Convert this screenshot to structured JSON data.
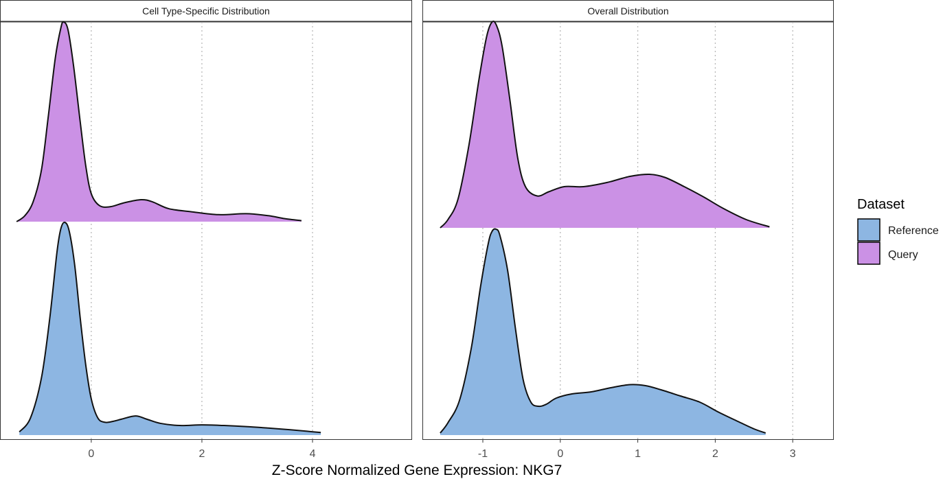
{
  "chart_data": {
    "type": "area",
    "subtype": "ridgeline-density",
    "xlabel": "Z-Score Normalized Gene Expression: NKG7",
    "legend": {
      "title": "Dataset",
      "position": "right",
      "items": [
        {
          "label": "Reference",
          "color": "#8DB6E2"
        },
        {
          "label": "Query",
          "color": "#CB91E5"
        }
      ]
    },
    "grid": {
      "vertical": "dotted",
      "horizontal": false
    },
    "panels": [
      {
        "strip": "Cell Type-Specific Distribution",
        "xlim": [
          -1.65,
          5.8
        ],
        "ticks": [
          0,
          2,
          4
        ],
        "tick_labels": [
          "0",
          "2",
          "4"
        ],
        "series": [
          {
            "name": "Reference",
            "color": "#8DB6E2",
            "points": [
              [
                -1.3,
                0.015
              ],
              [
                -1.1,
                0.08
              ],
              [
                -0.9,
                0.27
              ],
              [
                -0.75,
                0.55
              ],
              [
                -0.62,
                0.86
              ],
              [
                -0.55,
                0.97
              ],
              [
                -0.48,
                1.0
              ],
              [
                -0.4,
                0.96
              ],
              [
                -0.3,
                0.8
              ],
              [
                -0.2,
                0.55
              ],
              [
                -0.1,
                0.33
              ],
              [
                0.0,
                0.17
              ],
              [
                0.12,
                0.08
              ],
              [
                0.25,
                0.06
              ],
              [
                0.4,
                0.065
              ],
              [
                0.55,
                0.075
              ],
              [
                0.8,
                0.09
              ],
              [
                1.0,
                0.075
              ],
              [
                1.25,
                0.055
              ],
              [
                1.6,
                0.045
              ],
              [
                2.0,
                0.048
              ],
              [
                2.4,
                0.045
              ],
              [
                2.8,
                0.04
              ],
              [
                3.2,
                0.033
              ],
              [
                3.6,
                0.025
              ],
              [
                3.9,
                0.018
              ],
              [
                4.15,
                0.012
              ]
            ]
          },
          {
            "name": "Query",
            "color": "#CB91E5",
            "points": [
              [
                -1.35,
                0.0
              ],
              [
                -1.2,
                0.03
              ],
              [
                -1.05,
                0.1
              ],
              [
                -0.9,
                0.26
              ],
              [
                -0.78,
                0.52
              ],
              [
                -0.65,
                0.82
              ],
              [
                -0.55,
                0.97
              ],
              [
                -0.5,
                1.0
              ],
              [
                -0.42,
                0.96
              ],
              [
                -0.32,
                0.78
              ],
              [
                -0.2,
                0.5
              ],
              [
                -0.1,
                0.28
              ],
              [
                0.0,
                0.14
              ],
              [
                0.15,
                0.08
              ],
              [
                0.35,
                0.075
              ],
              [
                0.6,
                0.095
              ],
              [
                0.9,
                0.11
              ],
              [
                1.1,
                0.1
              ],
              [
                1.4,
                0.065
              ],
              [
                1.8,
                0.05
              ],
              [
                2.3,
                0.035
              ],
              [
                2.8,
                0.04
              ],
              [
                3.2,
                0.03
              ],
              [
                3.5,
                0.015
              ],
              [
                3.8,
                0.005
              ]
            ]
          }
        ]
      },
      {
        "strip": "Overall Distribution",
        "xlim": [
          -1.78,
          3.53
        ],
        "ticks": [
          -1,
          0,
          1,
          2,
          3
        ],
        "tick_labels": [
          "-1",
          "0",
          "1",
          "2",
          "3"
        ],
        "series": [
          {
            "name": "Reference",
            "color": "#8DB6E2",
            "points": [
              [
                -1.55,
                0.01
              ],
              [
                -1.45,
                0.06
              ],
              [
                -1.3,
                0.17
              ],
              [
                -1.15,
                0.42
              ],
              [
                -1.03,
                0.72
              ],
              [
                -0.93,
                0.93
              ],
              [
                -0.88,
                0.99
              ],
              [
                -0.83,
                1.0
              ],
              [
                -0.78,
                0.97
              ],
              [
                -0.68,
                0.8
              ],
              [
                -0.58,
                0.52
              ],
              [
                -0.48,
                0.27
              ],
              [
                -0.38,
                0.16
              ],
              [
                -0.28,
                0.14
              ],
              [
                -0.18,
                0.15
              ],
              [
                -0.05,
                0.18
              ],
              [
                0.15,
                0.2
              ],
              [
                0.4,
                0.21
              ],
              [
                0.65,
                0.23
              ],
              [
                0.9,
                0.245
              ],
              [
                1.1,
                0.24
              ],
              [
                1.3,
                0.22
              ],
              [
                1.55,
                0.19
              ],
              [
                1.8,
                0.16
              ],
              [
                2.05,
                0.11
              ],
              [
                2.3,
                0.065
              ],
              [
                2.5,
                0.03
              ],
              [
                2.65,
                0.01
              ]
            ]
          },
          {
            "name": "Query",
            "color": "#CB91E5",
            "points": [
              [
                -1.55,
                0.0
              ],
              [
                -1.45,
                0.04
              ],
              [
                -1.32,
                0.14
              ],
              [
                -1.18,
                0.4
              ],
              [
                -1.05,
                0.72
              ],
              [
                -0.95,
                0.93
              ],
              [
                -0.88,
                1.0
              ],
              [
                -0.82,
                0.98
              ],
              [
                -0.75,
                0.88
              ],
              [
                -0.65,
                0.62
              ],
              [
                -0.55,
                0.34
              ],
              [
                -0.45,
                0.2
              ],
              [
                -0.3,
                0.155
              ],
              [
                -0.15,
                0.175
              ],
              [
                0.05,
                0.2
              ],
              [
                0.3,
                0.2
              ],
              [
                0.6,
                0.22
              ],
              [
                0.9,
                0.25
              ],
              [
                1.15,
                0.26
              ],
              [
                1.35,
                0.245
              ],
              [
                1.6,
                0.2
              ],
              [
                1.85,
                0.15
              ],
              [
                2.1,
                0.095
              ],
              [
                2.4,
                0.04
              ],
              [
                2.7,
                0.005
              ]
            ]
          }
        ]
      }
    ]
  }
}
